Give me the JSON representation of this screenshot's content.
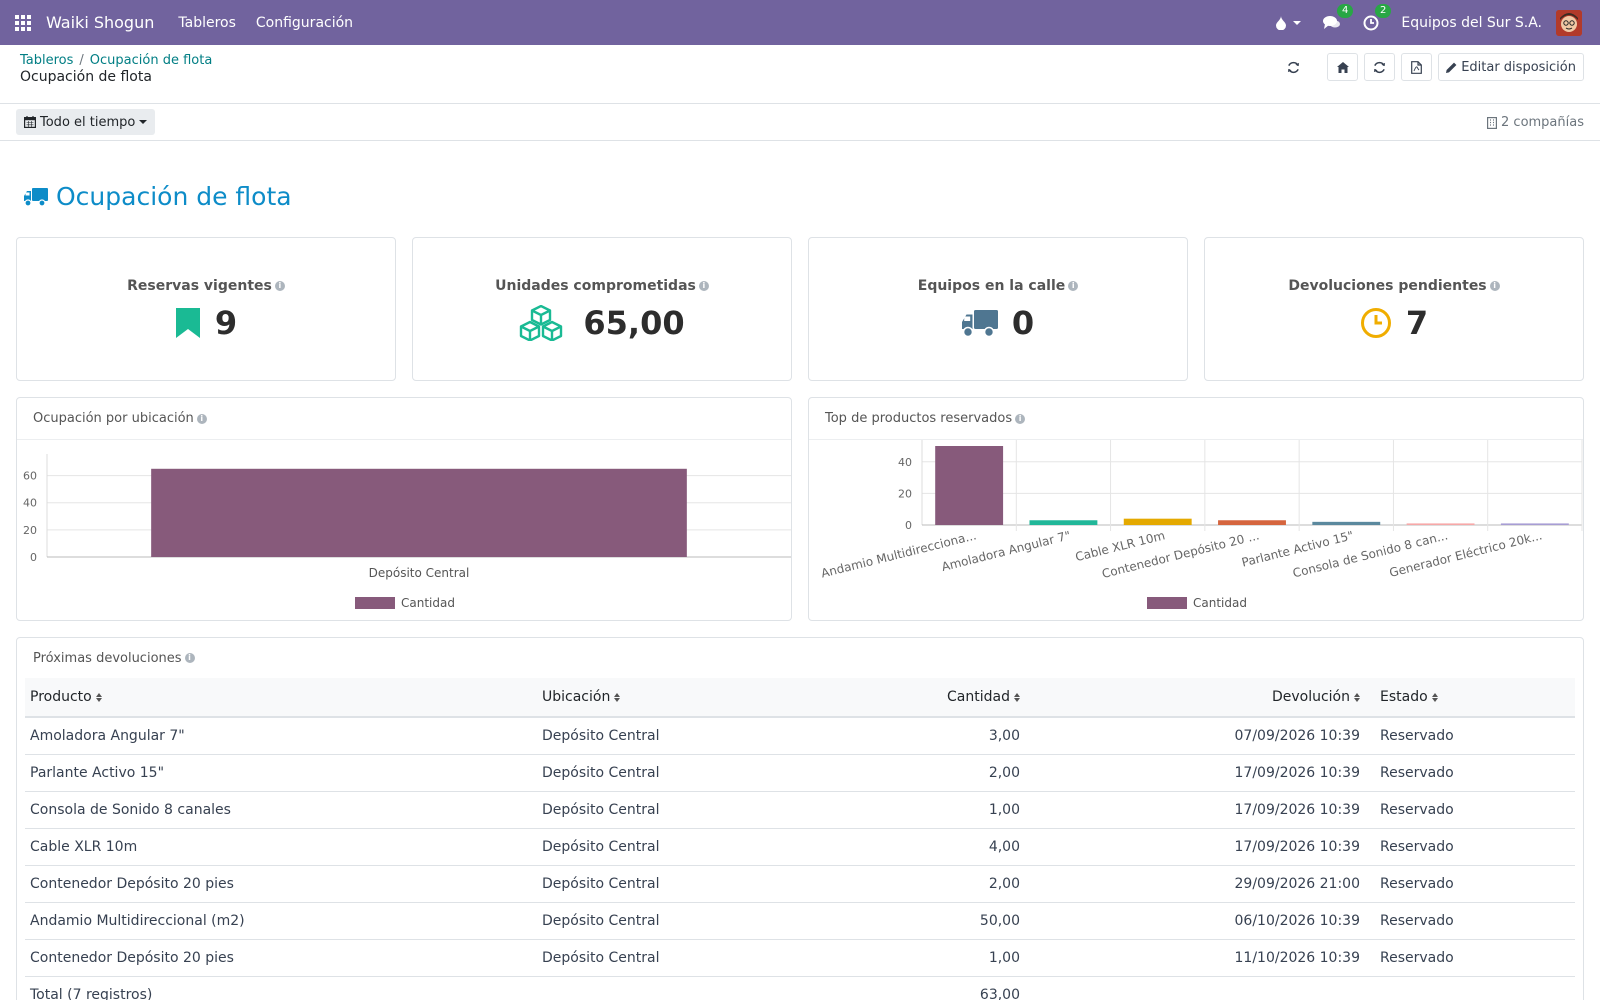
{
  "navbar": {
    "app_name": "Waiki Shogun",
    "menu": [
      "Tableros",
      "Configuración"
    ],
    "messages_count": "4",
    "activities_count": "2",
    "company": "Equipos del Sur S.A."
  },
  "control_panel": {
    "breadcrumb": [
      "Tableros",
      "Ocupación de flota"
    ],
    "title": "Ocupación de flota",
    "edit_layout_label": "Editar disposición",
    "date_filter": "Todo el tiempo",
    "companies": "2 compañías"
  },
  "dashboard": {
    "title": "Ocupación de flota",
    "kpis": [
      {
        "label": "Reservas vigentes",
        "value": "9",
        "icon": "bookmark-icon",
        "color": "#1aba94"
      },
      {
        "label": "Unidades comprometidas",
        "value": "65,00",
        "icon": "cubes-icon",
        "color": "#1aba94"
      },
      {
        "label": "Equipos en la calle",
        "value": "0",
        "icon": "truck-icon",
        "color": "#4f7691"
      },
      {
        "label": "Devoluciones pendientes",
        "value": "7",
        "icon": "clock-icon",
        "color": "#f0ad00"
      }
    ]
  },
  "chart_data": [
    {
      "type": "bar",
      "title": "Ocupación por ubicación",
      "categories": [
        "Depósito Central"
      ],
      "series": [
        {
          "name": "Cantidad",
          "values": [
            65
          ],
          "color": "#875a7b"
        }
      ],
      "yticks": [
        0,
        20,
        40,
        60
      ],
      "ylim": [
        0,
        70
      ],
      "legend": "bottom"
    },
    {
      "type": "bar",
      "title": "Top de productos reservados",
      "categories": [
        "Andamio Multidirecciona...",
        "Amoladora Angular 7\"",
        "Cable XLR 10m",
        "Contenedor Depósito 20 ...",
        "Parlante Activo 15\"",
        "Consola de Sonido 8 can...",
        "Generador Eléctrico 20k..."
      ],
      "series": [
        {
          "name": "Cantidad",
          "values": [
            50,
            3,
            4,
            3,
            2,
            1,
            1
          ]
        }
      ],
      "bar_colors": [
        "#875a7b",
        "#21b799",
        "#e4a900",
        "#d5653e",
        "#5b899e",
        "#f7a8a8",
        "#a79dd4"
      ],
      "yticks": [
        0,
        20,
        40
      ],
      "ylim": [
        0,
        50
      ],
      "legend": "bottom"
    }
  ],
  "table": {
    "title": "Próximas devoluciones",
    "headers": [
      "Producto",
      "Ubicación",
      "Cantidad",
      "Devolución",
      "Estado"
    ],
    "rows": [
      [
        "Amoladora Angular 7\"",
        "Depósito Central",
        "3,00",
        "07/09/2026 10:39",
        "Reservado"
      ],
      [
        "Parlante Activo 15\"",
        "Depósito Central",
        "2,00",
        "17/09/2026 10:39",
        "Reservado"
      ],
      [
        "Consola de Sonido 8 canales",
        "Depósito Central",
        "1,00",
        "17/09/2026 10:39",
        "Reservado"
      ],
      [
        "Cable XLR 10m",
        "Depósito Central",
        "4,00",
        "17/09/2026 10:39",
        "Reservado"
      ],
      [
        "Contenedor Depósito 20 pies",
        "Depósito Central",
        "2,00",
        "29/09/2026 21:00",
        "Reservado"
      ],
      [
        "Andamio Multidireccional (m2)",
        "Depósito Central",
        "50,00",
        "06/10/2026 10:39",
        "Reservado"
      ],
      [
        "Contenedor Depósito 20 pies",
        "Depósito Central",
        "1,00",
        "11/10/2026 10:39",
        "Reservado"
      ]
    ],
    "total_label": "Total (7 registros)",
    "total_value": "63,00"
  }
}
